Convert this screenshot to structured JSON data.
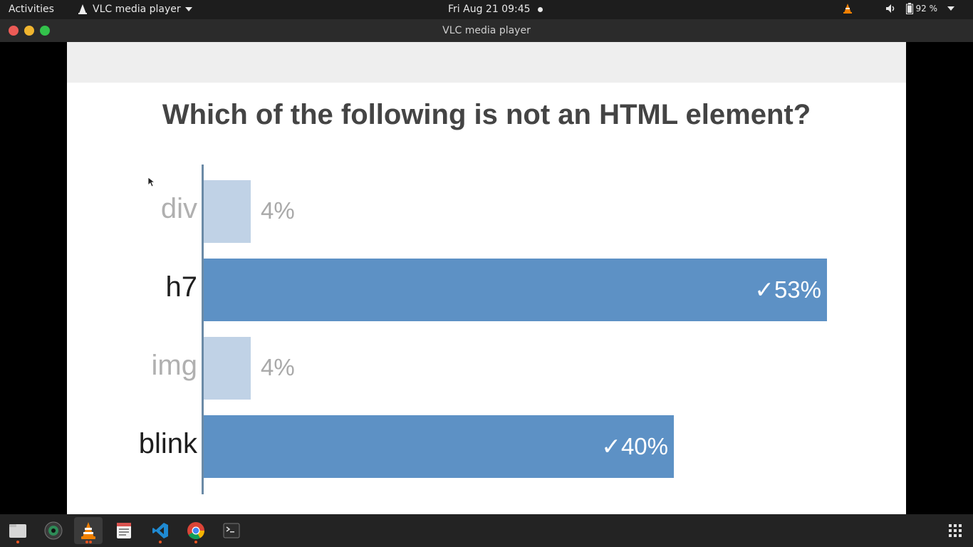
{
  "topbar": {
    "activities": "Activities",
    "app_name": "VLC media player",
    "datetime": "Fri Aug 21  09:45",
    "battery": "92 %"
  },
  "window": {
    "title": "VLC media player"
  },
  "slide": {
    "question": "Which of the following is not an HTML element?"
  },
  "chart_data": {
    "type": "bar",
    "orientation": "horizontal",
    "title": "Which of the following is not an HTML element?",
    "categories": [
      "div",
      "h7",
      "img",
      "blink"
    ],
    "values": [
      4,
      53,
      4,
      40
    ],
    "value_labels": [
      "4%",
      "✓53%",
      "4%",
      "✓40%"
    ],
    "correct": [
      false,
      true,
      false,
      true
    ],
    "unit": "%",
    "colors": {
      "correct": "#5d91c5",
      "incorrect": "#c0d2e6"
    },
    "grid": false,
    "legend": "none"
  },
  "dock": {
    "items": [
      {
        "name": "files-icon",
        "running": true
      },
      {
        "name": "camera-icon",
        "running": false
      },
      {
        "name": "vlc-icon",
        "running": true,
        "active": true
      },
      {
        "name": "text-editor-icon",
        "running": false
      },
      {
        "name": "vscode-icon",
        "running": true
      },
      {
        "name": "chrome-icon",
        "running": true
      },
      {
        "name": "terminal-icon",
        "running": false
      }
    ]
  }
}
